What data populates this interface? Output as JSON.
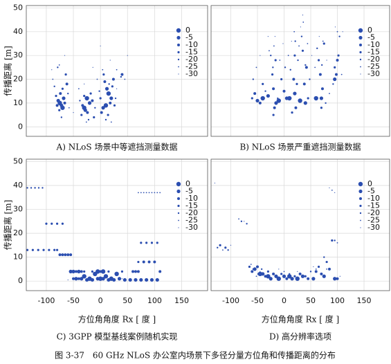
{
  "caption": "图 3-37　60 GHz NLoS 办公室内场景下多径分量方位角和传播距离的分布",
  "chart_data": [
    {
      "type": "scatter",
      "caption": "A) NLoS 场景中等遮挡测量数据",
      "ylabel": "传播距离 [m]",
      "xlim": [
        -137,
        198
      ],
      "ylim": [
        -4,
        51
      ],
      "xticks": [
        -100,
        -50,
        0,
        50,
        100,
        150
      ],
      "xtick_labels": false,
      "yticks": [
        0,
        10,
        20,
        30,
        40,
        50
      ],
      "ytick_labels": true,
      "grid": true,
      "color": "#2b4eb0",
      "series": [
        {
          "name": "0",
          "x": [
            -75,
            -70,
            -30,
            -25,
            10,
            15
          ],
          "values": [
            10,
            8,
            8,
            12,
            9,
            14
          ]
        },
        {
          "name": "-5",
          "x": [
            -78,
            -72,
            -68,
            -28,
            -20,
            5,
            12,
            20
          ],
          "values": [
            11,
            9,
            12,
            7,
            10,
            8,
            16,
            12
          ]
        },
        {
          "name": "-10",
          "x": [
            -80,
            -74,
            -66,
            -62,
            -33,
            -24,
            -15,
            2,
            8,
            18,
            24,
            40
          ],
          "values": [
            9,
            14,
            10,
            18,
            9,
            6,
            11,
            6,
            19,
            10,
            20,
            22
          ]
        },
        {
          "name": "-15",
          "x": [
            -82,
            -76,
            -70,
            -64,
            -35,
            -30,
            -18,
            -12,
            0,
            6,
            14,
            22,
            26
          ],
          "values": [
            13,
            7,
            16,
            22,
            5,
            13,
            14,
            4,
            12,
            22,
            5,
            17,
            9
          ]
        },
        {
          "name": "-20",
          "x": [
            -85,
            -79,
            -72,
            -60,
            -38,
            -22,
            -10,
            -2,
            10,
            16,
            28,
            38
          ],
          "values": [
            17,
            25,
            4,
            14,
            11,
            3,
            8,
            15,
            3,
            18,
            12,
            21
          ]
        },
        {
          "name": "-25",
          "x": [
            -88,
            -76,
            -58,
            -40,
            -26,
            -6,
            4,
            20,
            30,
            45
          ],
          "values": [
            20,
            26,
            8,
            16,
            2,
            20,
            24,
            2,
            24,
            20
          ]
        },
        {
          "name": "-30",
          "x": [
            -90,
            -66,
            -50,
            -30,
            -14,
            0,
            18,
            30,
            50
          ],
          "values": [
            24,
            30,
            6,
            18,
            25,
            34,
            28,
            16,
            30
          ]
        }
      ]
    },
    {
      "type": "scatter",
      "caption": "B) NLoS 场景严重遮挡测量数据",
      "xlim": [
        -137,
        198
      ],
      "ylim": [
        -4,
        51
      ],
      "xticks": [
        -100,
        -50,
        0,
        50,
        100,
        150
      ],
      "xtick_labels": false,
      "yticks": [
        0,
        10,
        20,
        30,
        40,
        50
      ],
      "ytick_labels": false,
      "grid": true,
      "color": "#2b4eb0",
      "series": [
        {
          "name": "0",
          "x": [
            -40,
            -10,
            10,
            30,
            60
          ],
          "values": [
            12,
            11,
            12,
            11,
            12
          ]
        },
        {
          "name": "-5",
          "x": [
            -50,
            -30,
            -15,
            5,
            20,
            40,
            70,
            95
          ],
          "values": [
            11,
            13,
            10,
            12,
            14,
            10,
            12,
            20
          ]
        },
        {
          "name": "-10",
          "x": [
            -55,
            -45,
            -20,
            -18,
            0,
            18,
            22,
            38,
            42,
            68,
            72,
            98,
            100
          ],
          "values": [
            14,
            10,
            16,
            8,
            15,
            20,
            8,
            18,
            25,
            22,
            16,
            22,
            28
          ]
        },
        {
          "name": "-15",
          "x": [
            -60,
            -40,
            -22,
            -20,
            -16,
            -5,
            15,
            20,
            24,
            35,
            45,
            65,
            70,
            75,
            95,
            102
          ],
          "values": [
            12,
            18,
            22,
            5,
            28,
            20,
            6,
            30,
            18,
            32,
            12,
            28,
            8,
            35,
            25,
            30
          ]
        },
        {
          "name": "-20",
          "x": [
            -58,
            -35,
            -25,
            -21,
            -12,
            2,
            12,
            21,
            26,
            33,
            40,
            48,
            62,
            71,
            78,
            92,
            104
          ],
          "values": [
            20,
            15,
            30,
            25,
            12,
            25,
            24,
            36,
            28,
            38,
            26,
            20,
            33,
            26,
            10,
            18,
            38
          ]
        },
        {
          "name": "-25",
          "x": [
            -52,
            -28,
            -19,
            -8,
            8,
            19,
            28,
            36,
            44,
            58,
            73,
            85,
            100,
            108
          ],
          "values": [
            25,
            32,
            34,
            28,
            30,
            40,
            34,
            44,
            35,
            25,
            36,
            14,
            40,
            22
          ]
        },
        {
          "name": "-30",
          "x": [
            -45,
            -30,
            -17,
            -2,
            14,
            31,
            35,
            52,
            66,
            80,
            96,
            110
          ],
          "values": [
            30,
            38,
            38,
            35,
            36,
            42,
            47,
            30,
            38,
            28,
            42,
            40
          ]
        }
      ]
    },
    {
      "type": "scatter",
      "caption": "C) 3GPP 模型基线案例随机实现",
      "ylabel": "传播距离 [m]",
      "xlabel": "方位角角度 Rx [ 度 ]",
      "xlim": [
        -137,
        198
      ],
      "ylim": [
        -4,
        51
      ],
      "xticks": [
        -100,
        -50,
        0,
        50,
        100,
        150
      ],
      "xtick_labels": true,
      "yticks": [
        0,
        10,
        20,
        30,
        40,
        50
      ],
      "ytick_labels": true,
      "grid": true,
      "color": "#2b4eb0",
      "series": [
        {
          "name": "0",
          "x": [
            -30,
            -20,
            -10,
            0,
            10,
            20,
            30,
            -5,
            5
          ],
          "values": [
            2,
            1,
            3,
            1,
            2,
            1,
            3,
            4,
            4
          ]
        },
        {
          "name": "-5",
          "x": [
            -55,
            -50,
            -45,
            -40,
            -35,
            -25,
            -15,
            -5,
            5,
            15,
            25,
            35,
            45,
            55,
            65,
            75,
            85,
            95,
            105
          ],
          "values": [
            4,
            4,
            1,
            4,
            1,
            0.5,
            0.5,
            1,
            1,
            0.5,
            0.5,
            1,
            0.5,
            0.5,
            0.5,
            0.5,
            0.5,
            0.5,
            0.5
          ]
        },
        {
          "name": "-10",
          "x": [
            -75,
            -70,
            -65,
            -60,
            -55,
            -50,
            -45,
            -40,
            -35,
            0,
            60,
            65,
            70,
            80,
            90,
            100,
            110
          ],
          "values": [
            11,
            11,
            11,
            11,
            11,
            1,
            4,
            1,
            4,
            4,
            4,
            4,
            4,
            8,
            8,
            8,
            4
          ]
        },
        {
          "name": "-15",
          "x": [
            -135,
            -125,
            -115,
            -105,
            -95,
            -85,
            -80,
            -100,
            -90,
            -80,
            -70,
            -30,
            -15,
            15,
            40,
            70,
            75,
            85,
            95,
            105
          ],
          "values": [
            13,
            13,
            13,
            13,
            13,
            13,
            13,
            24,
            24,
            24,
            24,
            4,
            4,
            4,
            4,
            8,
            16,
            16,
            16,
            16
          ]
        },
        {
          "name": "-20",
          "x": [
            -135,
            -128,
            -121,
            -114,
            -107
          ],
          "values": [
            39,
            39,
            39,
            39,
            39
          ]
        },
        {
          "name": "-25",
          "x": [
            70,
            75,
            80,
            85,
            90,
            95,
            100,
            105,
            110
          ],
          "values": [
            37,
            37,
            37,
            37,
            37,
            37,
            37,
            37,
            37
          ]
        },
        {
          "name": "-30",
          "x": [
            -120,
            -100,
            -60,
            40,
            80,
            110
          ],
          "values": [
            39,
            24,
            0.5,
            1,
            8,
            4
          ]
        }
      ]
    },
    {
      "type": "scatter",
      "caption": "D) 高分辨率选项",
      "xlabel": "方位角角度 Rx [ 度 ]",
      "xlim": [
        -137,
        198
      ],
      "ylim": [
        -4,
        51
      ],
      "xticks": [
        -100,
        -50,
        0,
        50,
        100,
        150
      ],
      "xtick_labels": true,
      "yticks": [
        0,
        10,
        20,
        30,
        40,
        50
      ],
      "ytick_labels": false,
      "grid": true,
      "color": "#2b4eb0",
      "series": [
        {
          "name": "0",
          "x": [
            -30,
            -10,
            10,
            25,
            -45
          ],
          "values": [
            2,
            1,
            2,
            1,
            3
          ]
        },
        {
          "name": "-5",
          "x": [
            -55,
            -40,
            -25,
            -15,
            0,
            15,
            35,
            55,
            75,
            95
          ],
          "values": [
            5,
            3,
            1,
            2,
            2,
            1,
            2,
            1,
            2,
            1
          ]
        },
        {
          "name": "-10",
          "x": [
            -60,
            -50,
            -35,
            -20,
            5,
            30,
            45,
            60,
            70,
            85,
            100
          ],
          "values": [
            4,
            6,
            2,
            3,
            1,
            3,
            1,
            4,
            3,
            5,
            1
          ]
        },
        {
          "name": "-15",
          "x": [
            -120,
            -110,
            -65,
            -48,
            -30,
            -5,
            20,
            40,
            65,
            80,
            90
          ],
          "values": [
            15,
            14,
            6,
            3,
            4,
            3,
            2,
            2,
            6,
            8,
            17
          ]
        },
        {
          "name": "-20",
          "x": [
            -125,
            -105,
            -80,
            -70,
            -58,
            -42,
            -20,
            10,
            50,
            75,
            95
          ],
          "values": [
            14,
            13,
            25,
            24,
            5,
            5,
            3,
            3,
            4,
            10,
            17
          ]
        },
        {
          "name": "-25",
          "x": [
            -115,
            -85,
            -62,
            -52,
            -30,
            0,
            30,
            60,
            80,
            90,
            100
          ],
          "values": [
            13,
            26,
            7,
            2,
            2,
            4,
            3,
            5,
            5,
            38,
            16
          ]
        },
        {
          "name": "-30",
          "x": [
            -130,
            -100,
            -75,
            -45,
            -10,
            25,
            55,
            85,
            95,
            105
          ],
          "values": [
            41,
            15,
            25,
            4,
            5,
            4,
            6,
            39,
            37,
            2
          ]
        }
      ]
    }
  ]
}
